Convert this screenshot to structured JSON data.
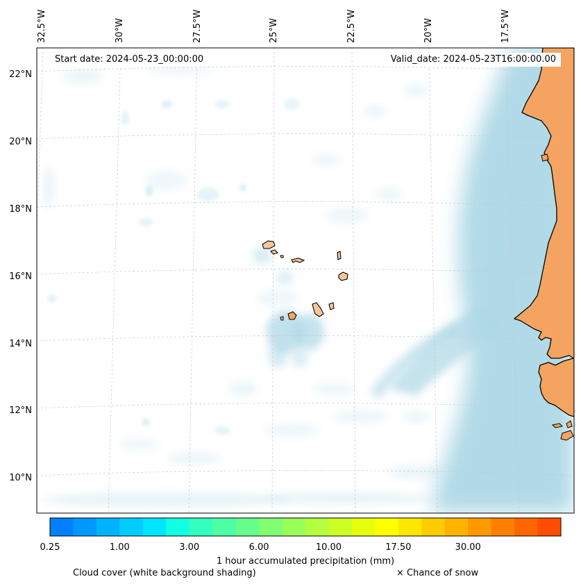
{
  "map": {
    "start_date": "Start date: 2024-05-23_00:00:00",
    "valid_date": "Valid_date: 2024-05-23T16:00:00.00",
    "lon_labels": [
      "32.5°W",
      "30°W",
      "27.5°W",
      "25°W",
      "22.5°W",
      "20°W",
      "17.5°W"
    ],
    "lat_labels": [
      "22°N",
      "20°N",
      "18°N",
      "16°N",
      "14°N",
      "12°N",
      "10°N"
    ],
    "colors": {
      "land": "#f4a460",
      "island_fill": "#f9c89a",
      "cloud": "#add8e6",
      "grid": "#c8c8c8",
      "coastline": "#000000"
    }
  },
  "legend": {
    "colorbar_colors": [
      "#0080ff",
      "#0099ff",
      "#00b3ff",
      "#00ccff",
      "#00e6ff",
      "#13ffe4",
      "#33ffbf",
      "#4dffa6",
      "#66ff8c",
      "#80ff73",
      "#99ff59",
      "#b3ff40",
      "#ccff26",
      "#e6ff0d",
      "#ffff00",
      "#ffe600",
      "#ffcc00",
      "#ffb300",
      "#ff9900",
      "#ff8000",
      "#ff6600",
      "#ff4d00"
    ],
    "ticks": [
      "0.25",
      "1.00",
      "3.00",
      "6.00",
      "10.00",
      "17.50",
      "30.00"
    ],
    "title": "1 hour accumulated precipitation (mm)",
    "cloud_note": "Cloud cover (white background shading)",
    "snow_note": "× Chance of snow"
  }
}
